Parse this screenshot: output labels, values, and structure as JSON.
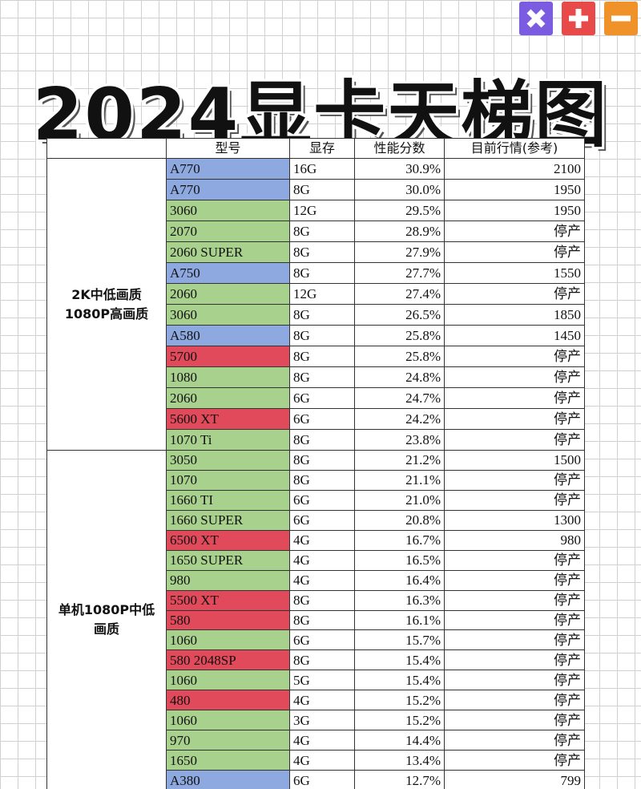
{
  "title": "2024显卡天梯图",
  "table": {
    "header": [
      "型号",
      "显存",
      "性能分数",
      "目前行情(参考)"
    ],
    "groups": [
      {
        "label": [
          "2K中低画质",
          "1080P高画质"
        ],
        "rows": [
          [
            "A770",
            "16G",
            "30.9%",
            "2100"
          ],
          [
            "A770",
            "8G",
            "30.0%",
            "1950"
          ],
          [
            "3060",
            "12G",
            "29.5%",
            "1950"
          ],
          [
            "2070",
            "8G",
            "28.9%",
            "停产"
          ],
          [
            "2060 SUPER",
            "8G",
            "27.9%",
            "停产"
          ],
          [
            "A750",
            "8G",
            "27.7%",
            "1550"
          ],
          [
            "2060",
            "12G",
            "27.4%",
            "停产"
          ],
          [
            "3060",
            "8G",
            "26.5%",
            "1850"
          ],
          [
            "A580",
            "8G",
            "25.8%",
            "1450"
          ],
          [
            "5700",
            "8G",
            "25.8%",
            "停产"
          ],
          [
            "1080",
            "8G",
            "24.8%",
            "停产"
          ],
          [
            "2060",
            "6G",
            "24.7%",
            "停产"
          ],
          [
            "5600 XT",
            "6G",
            "24.2%",
            "停产"
          ],
          [
            "1070 Ti",
            "8G",
            "23.8%",
            "停产"
          ]
        ],
        "colors": [
          "#8ea9e0",
          "#8ea9e0",
          "#a9d18e",
          "#a9d18e",
          "#a9d18e",
          "#8ea9e0",
          "#a9d18e",
          "#a9d18e",
          "#8ea9e0",
          "#e04a5a",
          "#a9d18e",
          "#a9d18e",
          "#e04a5a",
          "#a9d18e"
        ]
      },
      {
        "label": [
          "单机1080P中低",
          "画质"
        ],
        "rows": [
          [
            "3050",
            "8G",
            "21.2%",
            "1500"
          ],
          [
            "1070",
            "8G",
            "21.1%",
            "停产"
          ],
          [
            "1660 TI",
            "6G",
            "21.0%",
            "停产"
          ],
          [
            "1660 SUPER",
            "6G",
            "20.8%",
            "1300"
          ],
          [
            "6500 XT",
            "4G",
            "16.7%",
            "980"
          ],
          [
            "1650 SUPER",
            "4G",
            "16.5%",
            "停产"
          ],
          [
            "980",
            "4G",
            "16.4%",
            "停产"
          ],
          [
            "5500 XT",
            "8G",
            "16.3%",
            "停产"
          ],
          [
            "580",
            "8G",
            "16.1%",
            "停产"
          ],
          [
            "1060",
            "6G",
            "15.7%",
            "停产"
          ],
          [
            "580 2048SP",
            "8G",
            "15.4%",
            "停产"
          ],
          [
            "1060",
            "5G",
            "15.4%",
            "停产"
          ],
          [
            "480",
            "4G",
            "15.2%",
            "停产"
          ],
          [
            "1060",
            "3G",
            "15.2%",
            "停产"
          ],
          [
            "970",
            "4G",
            "14.4%",
            "停产"
          ],
          [
            "1650",
            "4G",
            "13.4%",
            "停产"
          ],
          [
            "A380",
            "6G",
            "12.7%",
            "799"
          ]
        ],
        "colors": [
          "#a9d18e",
          "#a9d18e",
          "#a9d18e",
          "#a9d18e",
          "#e04a5a",
          "#a9d18e",
          "#a9d18e",
          "#e04a5a",
          "#e04a5a",
          "#a9d18e",
          "#e04a5a",
          "#a9d18e",
          "#e04a5a",
          "#a9d18e",
          "#a9d18e",
          "#a9d18e",
          "#8ea9e0"
        ]
      }
    ]
  }
}
